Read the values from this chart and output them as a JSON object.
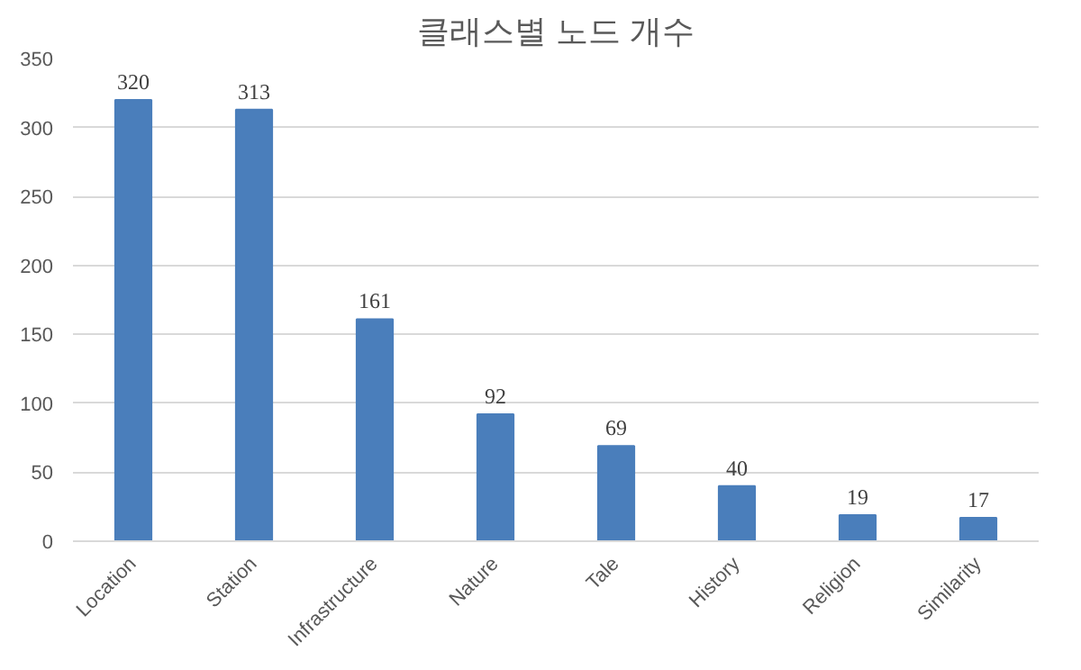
{
  "chart_data": {
    "type": "bar",
    "title": "클래스별 노드 개수",
    "categories": [
      "Location",
      "Station",
      "Infrastructure",
      "Nature",
      "Tale",
      "History",
      "Religion",
      "Similarity"
    ],
    "values": [
      320,
      313,
      161,
      92,
      69,
      40,
      19,
      17
    ],
    "color": "#4a7ebb",
    "ylim": [
      0,
      350
    ],
    "yticks": [
      0,
      50,
      100,
      150,
      200,
      250,
      300,
      350
    ],
    "grid": "y",
    "data_labels": true
  }
}
